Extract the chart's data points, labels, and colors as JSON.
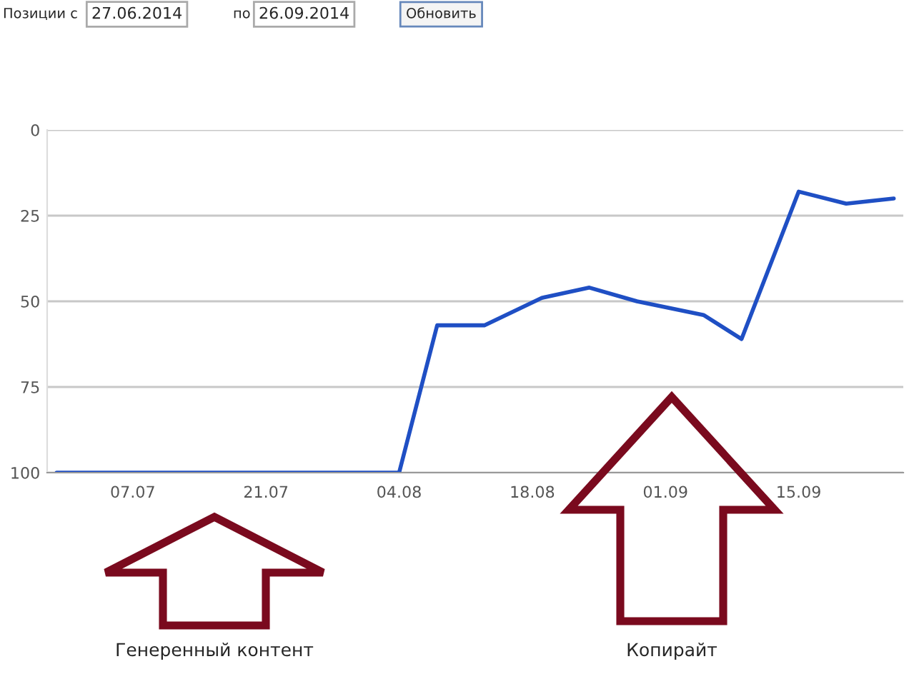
{
  "chart_data": {
    "type": "line",
    "x": [
      "2014-06-29",
      "2014-08-04",
      "2014-08-08",
      "2014-08-13",
      "2014-08-19",
      "2014-08-24",
      "2014-08-29",
      "2014-09-05",
      "2014-09-09",
      "2014-09-15",
      "2014-09-20",
      "2014-09-25"
    ],
    "series": [
      {
        "color": "#1f4fc4",
        "values": [
          100,
          100,
          57,
          57,
          49,
          46,
          50,
          54,
          61,
          18,
          21.5,
          20
        ]
      }
    ],
    "xlim": [
      "2014-06-28",
      "2014-09-26"
    ],
    "xticks": [
      {
        "value": "2014-07-07",
        "label": "07.07"
      },
      {
        "value": "2014-07-21",
        "label": "21.07"
      },
      {
        "value": "2014-08-04",
        "label": "04.08"
      },
      {
        "value": "2014-08-18",
        "label": "18.08"
      },
      {
        "value": "2014-09-01",
        "label": "01.09"
      },
      {
        "value": "2014-09-15",
        "label": "15.09"
      }
    ],
    "ylim": [
      100,
      0
    ],
    "yticks": [
      0,
      25,
      50,
      75,
      100
    ],
    "grid": "y",
    "annotations": [
      "Позиции с",
      "27.06.2014",
      "по",
      "26.09.2014",
      "Обновить",
      "Генеренный контент",
      "Копирайт"
    ]
  }
}
